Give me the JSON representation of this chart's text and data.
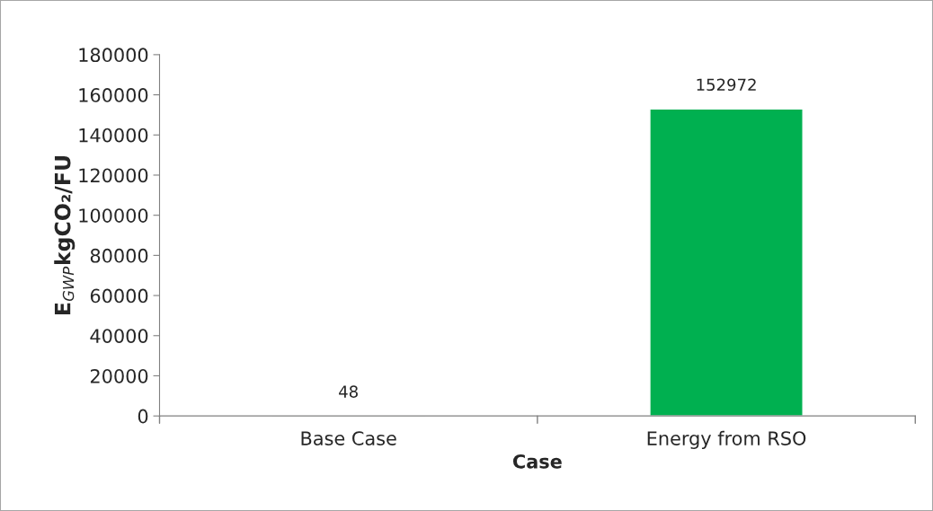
{
  "chart_data": {
    "type": "bar",
    "xlabel": "Case",
    "ylabel": "E$_{GWP}$kgCO₂/FU",
    "categories": [
      "Base Case",
      "Energy from RSO"
    ],
    "values": [
      48,
      152972
    ],
    "color": "#00b050",
    "ylim": [
      0,
      180000
    ],
    "yticks": [
      0,
      20000,
      40000,
      60000,
      80000,
      100000,
      120000,
      140000,
      160000,
      180000
    ],
    "grid": false,
    "data_labels": true
  }
}
